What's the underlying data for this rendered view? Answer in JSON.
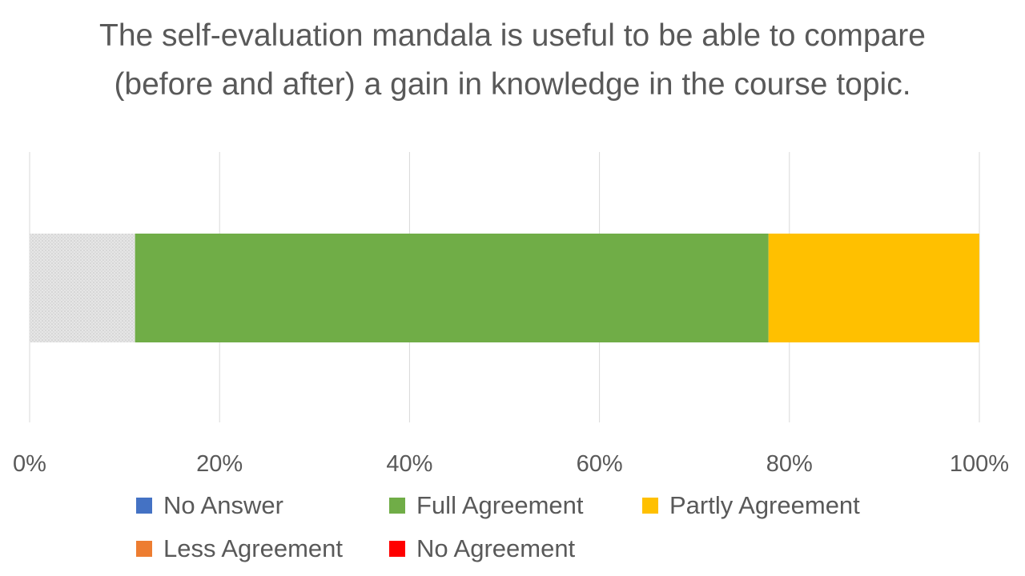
{
  "chart_data": {
    "type": "bar",
    "orientation": "horizontal",
    "stacked": "percent",
    "title": "The self-evaluation mandala is useful to be able to compare (before and after) a gain in knowledge in the course topic.",
    "xlim": [
      0,
      100
    ],
    "x_ticks": [
      "0%",
      "20%",
      "40%",
      "60%",
      "80%",
      "100%"
    ],
    "x_tick_values": [
      0,
      20,
      40,
      60,
      80,
      100
    ],
    "grid": true,
    "legend_position": "bottom",
    "segments": [
      {
        "label": "",
        "start": 0,
        "end": 11.1,
        "color": "#d9d9d9",
        "pattern": true
      },
      {
        "label": "Full Agreement",
        "start": 11.1,
        "end": 77.8,
        "color": "#70ad47"
      },
      {
        "label": "Partly Agreement",
        "start": 77.8,
        "end": 100,
        "color": "#ffc000"
      }
    ],
    "legend": [
      {
        "name": "No Answer",
        "color": "#4472c4"
      },
      {
        "name": "Full Agreement",
        "color": "#70ad47"
      },
      {
        "name": "Partly Agreement",
        "color": "#ffc000"
      },
      {
        "name": "Less Agreement",
        "color": "#ed7d31"
      },
      {
        "name": "No Agreement",
        "color": "#ff0000"
      }
    ]
  }
}
